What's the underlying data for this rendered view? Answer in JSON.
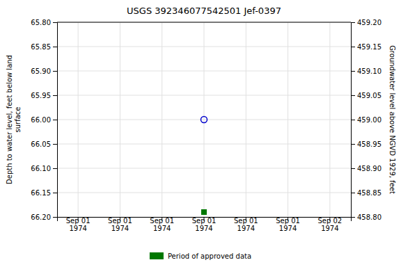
{
  "chart_data": {
    "type": "scatter",
    "title": "USGS 392346077542501  Jef-0397",
    "categories": [
      "Sep 01\n1974",
      "Sep 01\n1974",
      "Sep 01\n1974",
      "Sep 01\n1974",
      "Sep 01\n1974",
      "Sep 01\n1974",
      "Sep 02\n1974"
    ],
    "ylabel": "Depth to water level, feet below land\n surface",
    "y2label": "Groundwater level above NGVD 1929, feet",
    "ylim": [
      66.2,
      65.8
    ],
    "yticks": [
      {
        "value": 65.8,
        "label": "65.80"
      },
      {
        "value": 65.85,
        "label": "65.85"
      },
      {
        "value": 65.9,
        "label": "65.90"
      },
      {
        "value": 65.95,
        "label": "65.95"
      },
      {
        "value": 66.0,
        "label": "66.00"
      },
      {
        "value": 66.05,
        "label": "66.05"
      },
      {
        "value": 66.1,
        "label": "66.10"
      },
      {
        "value": 66.15,
        "label": "66.15"
      },
      {
        "value": 66.2,
        "label": "66.20"
      }
    ],
    "y2lim": [
      458.8,
      459.2
    ],
    "y2ticks": [
      {
        "value": 459.2,
        "label": "459.20"
      },
      {
        "value": 459.15,
        "label": "459.15"
      },
      {
        "value": 459.1,
        "label": "459.10"
      },
      {
        "value": 459.05,
        "label": "459.05"
      },
      {
        "value": 459.0,
        "label": "459.00"
      },
      {
        "value": 458.95,
        "label": "458.95"
      },
      {
        "value": 458.9,
        "label": "458.90"
      },
      {
        "value": 458.85,
        "label": "458.85"
      },
      {
        "value": 458.8,
        "label": "458.80"
      }
    ],
    "series": [
      {
        "color": "#0000cc",
        "marker": "open-circle",
        "values": [
          null,
          null,
          null,
          66.0,
          null,
          null,
          null
        ]
      },
      {
        "name": "Period of approved data",
        "color": "#007700",
        "marker": "square",
        "values": [
          null,
          null,
          null,
          66.19,
          null,
          null,
          null
        ]
      }
    ],
    "grid": true,
    "legend": "bottom"
  }
}
